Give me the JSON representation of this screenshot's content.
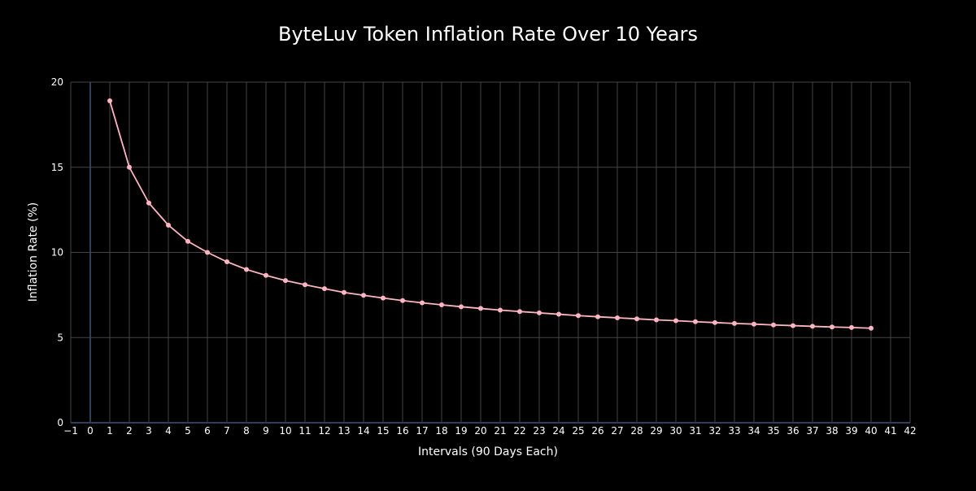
{
  "chart_data": {
    "type": "line",
    "title": "ByteLuv Token Inflation Rate Over 10 Years",
    "xlabel": "Intervals (90 Days Each)",
    "ylabel": "Inflation Rate (%)",
    "xlim": [
      -1,
      42
    ],
    "ylim": [
      0,
      20
    ],
    "x_ticks": [
      -1,
      0,
      1,
      2,
      3,
      4,
      5,
      6,
      7,
      8,
      9,
      10,
      11,
      12,
      13,
      14,
      15,
      16,
      17,
      18,
      19,
      20,
      21,
      22,
      23,
      24,
      25,
      26,
      27,
      28,
      29,
      30,
      31,
      32,
      33,
      34,
      35,
      36,
      37,
      38,
      39,
      40,
      41,
      42
    ],
    "x_tick_labels": [
      "−1",
      "0",
      "1",
      "2",
      "3",
      "4",
      "5",
      "6",
      "7",
      "8",
      "9",
      "10",
      "11",
      "12",
      "13",
      "14",
      "15",
      "16",
      "17",
      "18",
      "19",
      "20",
      "21",
      "22",
      "23",
      "24",
      "25",
      "26",
      "27",
      "28",
      "29",
      "30",
      "31",
      "32",
      "33",
      "34",
      "35",
      "36",
      "37",
      "38",
      "39",
      "40",
      "41",
      "42"
    ],
    "y_ticks": [
      0,
      5,
      10,
      15,
      20
    ],
    "y_tick_labels": [
      "0",
      "5",
      "10",
      "15",
      "20"
    ],
    "grid": true,
    "legend": "none",
    "background_color": "#000000",
    "grid_color": "#444444",
    "zero_line_color": "#2f3f5a",
    "series": [
      {
        "color": "#ffb6c1",
        "x": [
          1,
          2,
          3,
          4,
          5,
          6,
          7,
          8,
          9,
          10,
          11,
          12,
          13,
          14,
          15,
          16,
          17,
          18,
          19,
          20,
          21,
          22,
          23,
          24,
          25,
          26,
          27,
          28,
          29,
          30,
          31,
          32,
          33,
          34,
          35,
          36,
          37,
          38,
          39,
          40
        ],
        "y": [
          18.9,
          15.0,
          12.9,
          11.6,
          10.65,
          10.0,
          9.45,
          9.0,
          8.65,
          8.35,
          8.1,
          7.87,
          7.65,
          7.48,
          7.32,
          7.17,
          7.04,
          6.92,
          6.81,
          6.71,
          6.61,
          6.53,
          6.45,
          6.37,
          6.29,
          6.22,
          6.16,
          6.1,
          6.04,
          5.99,
          5.93,
          5.88,
          5.83,
          5.79,
          5.74,
          5.7,
          5.66,
          5.62,
          5.59,
          5.55
        ]
      }
    ]
  }
}
